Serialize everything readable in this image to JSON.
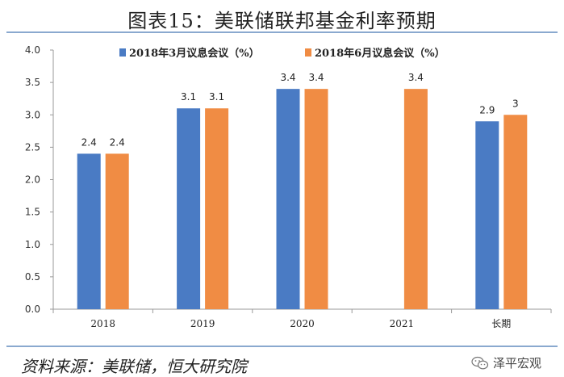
{
  "header": {
    "title": "图表15：美联储联邦基金利率预期"
  },
  "footer": {
    "source": "资料来源：美联储，恒大研究院",
    "watermark": "泽平宏观"
  },
  "colors": {
    "series1": "#4a7bc4",
    "series2": "#f08c44",
    "rule": "#8aa9cf"
  },
  "chart_data": {
    "type": "bar",
    "title": "图表15：美联储联邦基金利率预期",
    "xlabel": "",
    "ylabel": "",
    "categories": [
      "2018",
      "2019",
      "2020",
      "2021",
      "长期"
    ],
    "ylim": [
      0,
      4.0
    ],
    "yticks": [
      "0.0",
      "0.5",
      "1.0",
      "1.5",
      "2.0",
      "2.5",
      "3.0",
      "3.5",
      "4.0"
    ],
    "grid": false,
    "legend_position": "top",
    "series": [
      {
        "name": "2018年3月议息会议（%）",
        "color": "#4a7bc4",
        "values": [
          2.4,
          3.1,
          3.4,
          null,
          2.9
        ],
        "labels": [
          "2.4",
          "3.1",
          "3.4",
          "",
          "2.9"
        ]
      },
      {
        "name": "2018年6月议息会议（%）",
        "color": "#f08c44",
        "values": [
          2.4,
          3.1,
          3.4,
          3.4,
          3.0
        ],
        "labels": [
          "2.4",
          "3.1",
          "3.4",
          "3.4",
          "3"
        ]
      }
    ]
  }
}
